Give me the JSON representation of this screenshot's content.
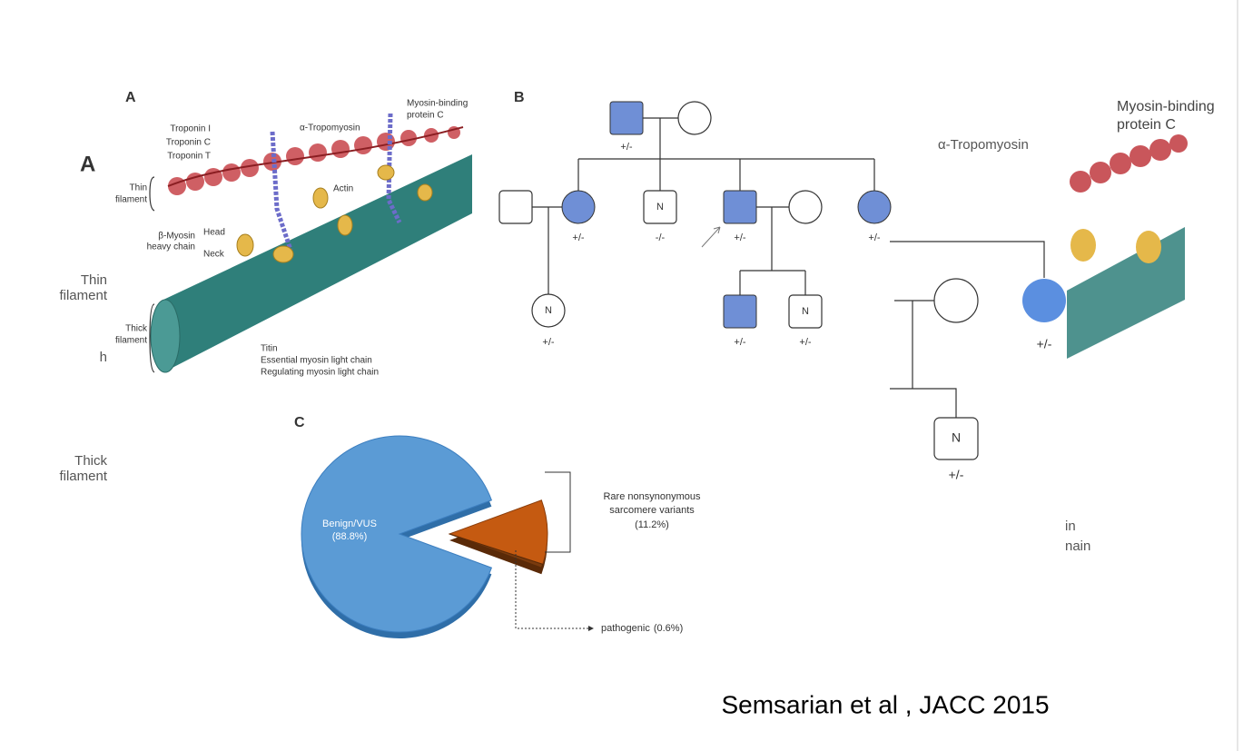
{
  "citation": "Semsarian et al , JACC 2015",
  "ghost_left": {
    "letter": "A",
    "thin": [
      "Thin",
      "filament"
    ],
    "fragment": "h",
    "thick": [
      "Thick",
      "filament"
    ]
  },
  "ghost_right": {
    "tropomyosin": "α-Tropomyosin",
    "mybpc": [
      "Myosin-binding",
      "protein C"
    ],
    "genotype_1": "+/-",
    "genotype_2": "+/-",
    "n_label": "N",
    "fragments": [
      "in",
      "nain"
    ]
  },
  "panel_a": {
    "letter": "A",
    "troponin": [
      "Troponin I",
      "Troponin C",
      "Troponin T"
    ],
    "tropomyosin": "α-Tropomyosin",
    "mybpc": [
      "Myosin-binding",
      "protein C"
    ],
    "actin": "Actin",
    "thin": [
      "Thin",
      "filament"
    ],
    "myosin": [
      "β-Myosin",
      "heavy chain"
    ],
    "head": "Head",
    "neck": "Neck",
    "thick": [
      "Thick",
      "filament"
    ],
    "legend": [
      "Titin",
      "Essential myosin light chain",
      "Regulating myosin light chain"
    ]
  },
  "panel_b": {
    "letter": "B",
    "gen1_father": "+/-",
    "gen2": {
      "daughter1": "+/-",
      "son_n": "N",
      "son_n_genotype": "-/-",
      "proband": "+/-",
      "daughter2": "+/-"
    },
    "gen3": {
      "grandchild1_n": "N",
      "grandchild1": "+/-",
      "grandchild2": "+/-",
      "grandchild3_n": "N",
      "grandchild3": "+/-"
    }
  },
  "panel_c": {
    "letter": "C",
    "slices": [
      {
        "label": "Benign/VUS",
        "value": 88.8,
        "value_label": "(88.8%)",
        "color": "#5b9bd5"
      },
      {
        "label": [
          "Rare nonsynonymous",
          "sarcomere variants"
        ],
        "value": 11.2,
        "value_label": "(11.2%)",
        "color": "#c55a11"
      },
      {
        "label": "pathogenic",
        "value": 0.6,
        "value_label": "(0.6%)",
        "color": "#7a3b0e"
      }
    ]
  }
}
